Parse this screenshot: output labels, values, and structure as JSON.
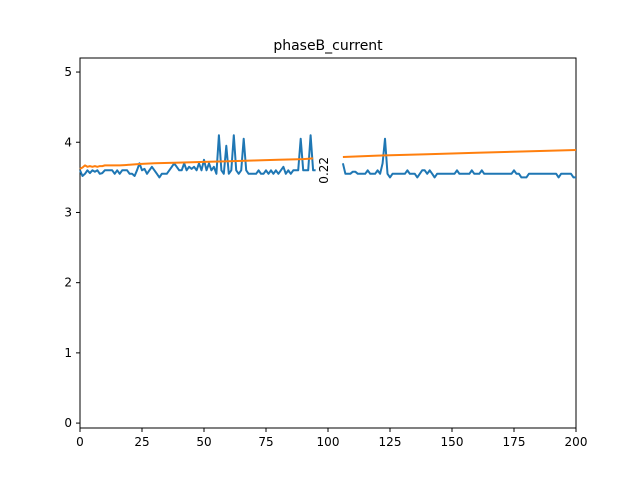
{
  "chart_data": {
    "type": "line",
    "title": "phaseB_current",
    "xlabel": "",
    "ylabel": "",
    "xlim": [
      0,
      200
    ],
    "ylim": [
      -0.07,
      5.2
    ],
    "xticks": [
      "0",
      "25",
      "50",
      "75",
      "100",
      "125",
      "150",
      "175",
      "200"
    ],
    "yticks": [
      "0",
      "1",
      "2",
      "3",
      "4",
      "5"
    ],
    "grid": false,
    "annotation": {
      "text": "0.22",
      "x": 100,
      "y": 3.6
    },
    "series": [
      {
        "color": "#1f77b4",
        "segments": [
          {
            "x": [
              0,
              1,
              2,
              3,
              4,
              5,
              6,
              7,
              8,
              9,
              10,
              11,
              12,
              13,
              14,
              15,
              16,
              17,
              18,
              19,
              20,
              21,
              22,
              23,
              24,
              25,
              26,
              27,
              28,
              29,
              30,
              31,
              32,
              33,
              34,
              35,
              36,
              37,
              38,
              39,
              40,
              41,
              42,
              43,
              44,
              45,
              46,
              47,
              48,
              49,
              50,
              51,
              52,
              53,
              54,
              55,
              56,
              57,
              58,
              59,
              60,
              61,
              62,
              63,
              64,
              65,
              66,
              67,
              68,
              69,
              70,
              71,
              72,
              73,
              74,
              75,
              76,
              77,
              78,
              79,
              80,
              81,
              82,
              83,
              84,
              85,
              86,
              87,
              88,
              89,
              90,
              91,
              92,
              93,
              94,
              95
            ],
            "y": [
              3.6,
              3.52,
              3.55,
              3.6,
              3.56,
              3.6,
              3.58,
              3.6,
              3.55,
              3.56,
              3.6,
              3.6,
              3.6,
              3.6,
              3.55,
              3.6,
              3.55,
              3.6,
              3.6,
              3.6,
              3.55,
              3.55,
              3.52,
              3.6,
              3.7,
              3.6,
              3.62,
              3.55,
              3.6,
              3.65,
              3.6,
              3.55,
              3.5,
              3.55,
              3.55,
              3.55,
              3.6,
              3.65,
              3.7,
              3.65,
              3.6,
              3.6,
              3.7,
              3.6,
              3.65,
              3.62,
              3.65,
              3.6,
              3.7,
              3.6,
              3.75,
              3.6,
              3.7,
              3.6,
              3.65,
              3.55,
              4.1,
              3.6,
              3.55,
              3.95,
              3.55,
              3.6,
              4.1,
              3.6,
              3.55,
              3.6,
              4.05,
              3.6,
              3.55,
              3.55,
              3.55,
              3.55,
              3.6,
              3.55,
              3.55,
              3.6,
              3.55,
              3.6,
              3.55,
              3.6,
              3.55,
              3.6,
              3.65,
              3.55,
              3.6,
              3.55,
              3.6,
              3.6,
              3.6,
              4.05,
              3.6,
              3.6,
              3.6,
              4.1,
              3.6,
              3.6
            ]
          },
          {
            "x": [
              106,
              107,
              108,
              109,
              110,
              111,
              112,
              113,
              114,
              115,
              116,
              117,
              118,
              119,
              120,
              121,
              122,
              123,
              124,
              125,
              126,
              127,
              128,
              129,
              130,
              131,
              132,
              133,
              134,
              135,
              136,
              137,
              138,
              139,
              140,
              141,
              142,
              143,
              144,
              145,
              146,
              147,
              148,
              149,
              150,
              151,
              152,
              153,
              154,
              155,
              156,
              157,
              158,
              159,
              160,
              161,
              162,
              163,
              164,
              165,
              166,
              167,
              168,
              169,
              170,
              171,
              172,
              173,
              174,
              175,
              176,
              177,
              178,
              179,
              180,
              181,
              182,
              183,
              184,
              185,
              186,
              187,
              188,
              189,
              190,
              191,
              192,
              193,
              194,
              195,
              196,
              197,
              198,
              199,
              200
            ],
            "y": [
              3.7,
              3.55,
              3.55,
              3.55,
              3.58,
              3.58,
              3.55,
              3.55,
              3.55,
              3.55,
              3.6,
              3.55,
              3.55,
              3.55,
              3.6,
              3.55,
              3.7,
              4.05,
              3.55,
              3.5,
              3.55,
              3.55,
              3.55,
              3.55,
              3.55,
              3.55,
              3.6,
              3.55,
              3.55,
              3.55,
              3.5,
              3.55,
              3.6,
              3.6,
              3.55,
              3.6,
              3.55,
              3.5,
              3.55,
              3.55,
              3.55,
              3.55,
              3.55,
              3.55,
              3.55,
              3.55,
              3.6,
              3.55,
              3.55,
              3.55,
              3.55,
              3.55,
              3.6,
              3.55,
              3.55,
              3.55,
              3.6,
              3.55,
              3.55,
              3.55,
              3.55,
              3.55,
              3.55,
              3.55,
              3.55,
              3.55,
              3.55,
              3.55,
              3.55,
              3.6,
              3.55,
              3.55,
              3.5,
              3.5,
              3.5,
              3.55,
              3.55,
              3.55,
              3.55,
              3.55,
              3.55,
              3.55,
              3.55,
              3.55,
              3.55,
              3.55,
              3.55,
              3.5,
              3.55,
              3.55,
              3.55,
              3.55,
              3.55,
              3.5,
              3.5
            ]
          }
        ]
      },
      {
        "color": "#ff7f0e",
        "segments": [
          {
            "x": [
              0,
              1,
              2,
              3,
              4,
              5,
              6,
              7,
              8,
              9,
              10,
              12,
              14,
              16,
              18,
              20,
              22,
              24,
              30,
              40,
              50,
              60,
              70,
              80,
              90,
              94
            ],
            "y": [
              3.62,
              3.64,
              3.67,
              3.65,
              3.66,
              3.65,
              3.66,
              3.65,
              3.66,
              3.66,
              3.67,
              3.67,
              3.67,
              3.67,
              3.675,
              3.68,
              3.685,
              3.69,
              3.7,
              3.71,
              3.72,
              3.73,
              3.74,
              3.75,
              3.76,
              3.77
            ]
          },
          {
            "x": [
              106,
              120,
              140,
              160,
              180,
              200
            ],
            "y": [
              3.79,
              3.81,
              3.83,
              3.85,
              3.87,
              3.89
            ]
          }
        ]
      }
    ]
  }
}
